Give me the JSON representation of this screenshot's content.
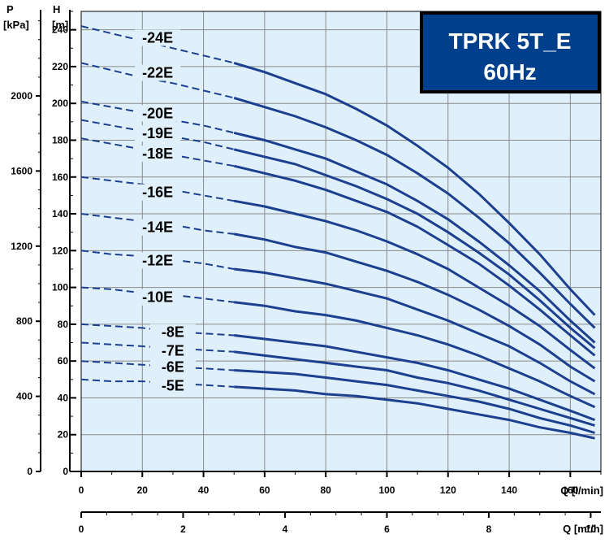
{
  "chart_data": {
    "type": "line",
    "title_lines": [
      "TPRK 5T_E",
      "60Hz"
    ],
    "x_axis": {
      "label": "Q [l/min]",
      "range": [
        0,
        170
      ],
      "ticks": [
        0,
        20,
        40,
        60,
        80,
        100,
        120,
        140,
        160
      ]
    },
    "x2_axis": {
      "label": "Q [m³/h]",
      "range": [
        0,
        10.2
      ],
      "ticks": [
        0,
        2,
        4,
        6,
        8,
        10
      ]
    },
    "y_axis": {
      "label": "H",
      "unit": "[m]",
      "range": [
        0,
        250
      ],
      "ticks": [
        0,
        20,
        40,
        60,
        80,
        100,
        120,
        140,
        160,
        180,
        200,
        220,
        240
      ]
    },
    "y2_axis": {
      "label": "P",
      "unit": "[kPa]",
      "range": [
        0,
        2450
      ],
      "ticks": [
        0,
        400,
        800,
        1200,
        1600,
        2000
      ]
    },
    "grid": true,
    "dashed_until_q": 50,
    "colors": {
      "curve": "#1c3f8f",
      "plot_bg": "#dff0fb",
      "grid": "#8a8a8a",
      "title_box": "#003f8c"
    },
    "x": [
      0,
      10,
      20,
      30,
      40,
      50,
      60,
      70,
      80,
      90,
      100,
      110,
      120,
      130,
      140,
      150,
      160,
      168
    ],
    "series": [
      {
        "name": "-24E",
        "label_at": [
          25,
          233
        ],
        "values": [
          242,
          238,
          234,
          230,
          226,
          222,
          217,
          211,
          205,
          197,
          188,
          177,
          165,
          151,
          135,
          118,
          99,
          85
        ]
      },
      {
        "name": "-22E",
        "label_at": [
          25,
          214
        ],
        "values": [
          222,
          218,
          214,
          211,
          207,
          203,
          198,
          193,
          187,
          180,
          172,
          162,
          151,
          138,
          124,
          108,
          91,
          78
        ]
      },
      {
        "name": "-20E",
        "label_at": [
          25,
          192
        ],
        "values": [
          201,
          198,
          195,
          191,
          188,
          184,
          180,
          175,
          170,
          163,
          156,
          147,
          137,
          125,
          112,
          98,
          82,
          70
        ]
      },
      {
        "name": "-19E",
        "label_at": [
          25,
          181
        ],
        "values": [
          191,
          188,
          185,
          182,
          179,
          175,
          171,
          167,
          161,
          155,
          148,
          140,
          130,
          119,
          107,
          93,
          78,
          67
        ]
      },
      {
        "name": "-18E",
        "label_at": [
          25,
          170
        ],
        "values": [
          181,
          178,
          175,
          172,
          169,
          166,
          162,
          158,
          153,
          147,
          141,
          133,
          123,
          113,
          101,
          88,
          74,
          63
        ]
      },
      {
        "name": "-16E",
        "label_at": [
          25,
          149
        ],
        "values": [
          160,
          158,
          156,
          153,
          150,
          147,
          144,
          140,
          136,
          131,
          125,
          118,
          110,
          100,
          90,
          79,
          66,
          56
        ]
      },
      {
        "name": "-14E",
        "label_at": [
          25,
          130
        ],
        "values": [
          140,
          138,
          136,
          134,
          131,
          129,
          126,
          122,
          119,
          114,
          109,
          103,
          96,
          88,
          79,
          69,
          57,
          49
        ]
      },
      {
        "name": "-12E",
        "label_at": [
          25,
          112
        ],
        "values": [
          120,
          118,
          117,
          115,
          113,
          110,
          108,
          105,
          102,
          98,
          94,
          88,
          82,
          75,
          68,
          59,
          49,
          42
        ]
      },
      {
        "name": "-10E",
        "label_at": [
          25,
          92
        ],
        "values": [
          100,
          99,
          97,
          96,
          94,
          92,
          90,
          87,
          85,
          82,
          78,
          74,
          69,
          63,
          56,
          49,
          41,
          35
        ]
      },
      {
        "name": "-8E",
        "label_at": [
          30,
          73
        ],
        "values": [
          80,
          79,
          78,
          76,
          75,
          74,
          72,
          70,
          68,
          65,
          62,
          59,
          55,
          50,
          45,
          39,
          33,
          28
        ]
      },
      {
        "name": "-7E",
        "label_at": [
          30,
          63
        ],
        "values": [
          70,
          69,
          68,
          67,
          66,
          65,
          63,
          61,
          59,
          57,
          55,
          51,
          48,
          44,
          39,
          34,
          29,
          25
        ]
      },
      {
        "name": "-6E",
        "label_at": [
          30,
          54
        ],
        "values": [
          60,
          59,
          58,
          57,
          56,
          55,
          54,
          53,
          51,
          49,
          47,
          44,
          41,
          38,
          34,
          29,
          25,
          21
        ]
      },
      {
        "name": "-5E",
        "label_at": [
          30,
          44
        ],
        "values": [
          50,
          49,
          49,
          48,
          47,
          46,
          45,
          44,
          42,
          41,
          39,
          37,
          34,
          31,
          28,
          24,
          21,
          18
        ]
      }
    ]
  }
}
